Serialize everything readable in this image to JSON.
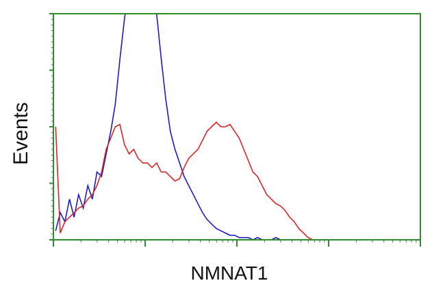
{
  "chart_data": {
    "type": "line",
    "ylabel": "Events",
    "xlabel": "NMNAT1",
    "categories": [
      null,
      null,
      null,
      null,
      null,
      null,
      null,
      null,
      null,
      null,
      null,
      null,
      null,
      null,
      null,
      null,
      null,
      null,
      null,
      null,
      null,
      null,
      null,
      null,
      null,
      null,
      null,
      null,
      null,
      null,
      null,
      null,
      null,
      null,
      null,
      null,
      null,
      null,
      null,
      null,
      null,
      null,
      null,
      null,
      null,
      null,
      null,
      null,
      null,
      null,
      null,
      null,
      null,
      null,
      null,
      null,
      null,
      null,
      null,
      null,
      null,
      null,
      null,
      null,
      null,
      null,
      null,
      null,
      null,
      null,
      null,
      null,
      null,
      null,
      null,
      null,
      null,
      null,
      null,
      null
    ],
    "series": [
      {
        "name": null,
        "color": "#1a1acc",
        "values": [
          4,
          12,
          8,
          18,
          10,
          20,
          14,
          24,
          18,
          30,
          28,
          38,
          48,
          60,
          80,
          98,
          110,
          110,
          108,
          110,
          110,
          110,
          100,
          80,
          62,
          48,
          40,
          34,
          28,
          24,
          20,
          16,
          12,
          9,
          7,
          5,
          4,
          3,
          2,
          2,
          1,
          1,
          1,
          0,
          1,
          0,
          0,
          0,
          1,
          0,
          0,
          0,
          0,
          0,
          0,
          0,
          0,
          0,
          0,
          0,
          0,
          0,
          0,
          0,
          0,
          0,
          0,
          0,
          0,
          0,
          0,
          0,
          0,
          0,
          0,
          0,
          0,
          0,
          0,
          0
        ]
      },
      {
        "name": null,
        "color": "#dd2222",
        "values": [
          50,
          3,
          8,
          10,
          12,
          14,
          15,
          18,
          20,
          24,
          30,
          40,
          45,
          50,
          51,
          42,
          38,
          40,
          36,
          34,
          34,
          32,
          34,
          30,
          30,
          28,
          26,
          27,
          32,
          36,
          38,
          40,
          44,
          48,
          50,
          52,
          50,
          50,
          51,
          48,
          45,
          40,
          35,
          30,
          28,
          24,
          20,
          18,
          16,
          15,
          13,
          10,
          8,
          5,
          3,
          1,
          0,
          0,
          0,
          0,
          0,
          0,
          0,
          0,
          0,
          0,
          0,
          0,
          0,
          0,
          0,
          0,
          0,
          0,
          0,
          0,
          0,
          0,
          0,
          0
        ]
      }
    ],
    "ylim": [
      0,
      100
    ],
    "yticks": [
      0,
      25,
      50,
      75,
      100
    ],
    "axis_color": "#2e8b2e"
  }
}
